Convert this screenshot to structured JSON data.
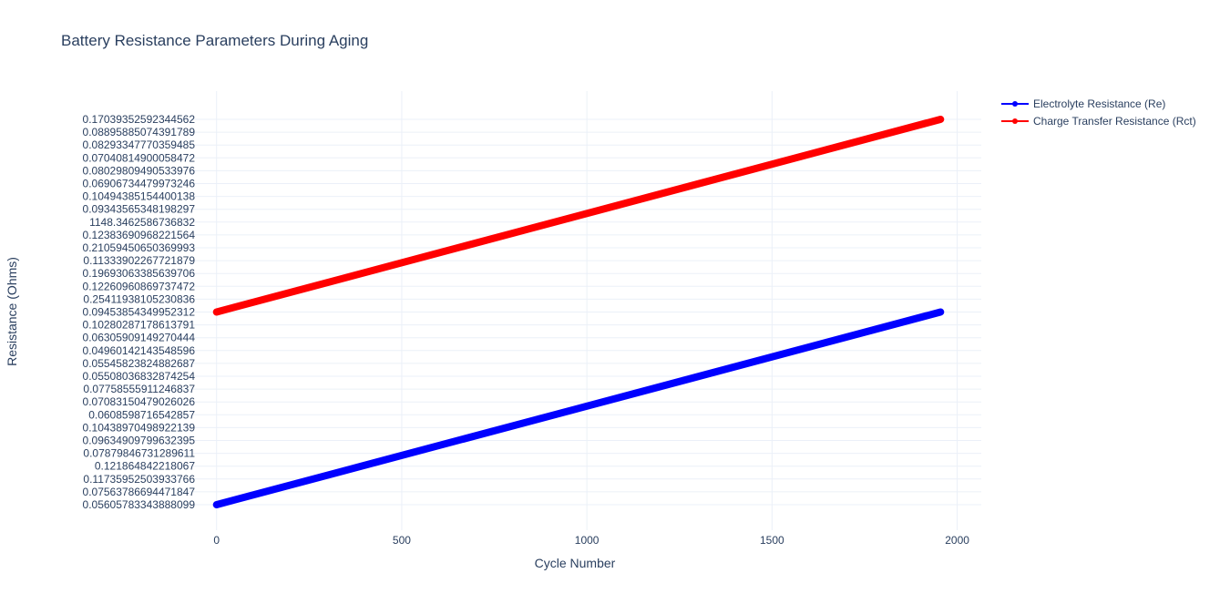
{
  "chart_data": {
    "type": "line",
    "title": "Battery Resistance Parameters During Aging",
    "xlabel": "Cycle Number",
    "ylabel": "Resistance (Ohms)",
    "xlim": [
      -110,
      2065
    ],
    "x_ticks": [
      0,
      500,
      1000,
      1500,
      2000
    ],
    "y_axis_type": "category",
    "y_categories": [
      "0.05605783343888099",
      "0.07563786694471847",
      "0.11735952503933766",
      "0.121864842218067",
      "0.07879846731289611",
      "0.09634909799632395",
      "0.10438970498922139",
      "0.0608598716542857",
      "0.07083150479026026",
      "0.07758555911246837",
      "0.05508036832874254",
      "0.05545823824882687",
      "0.04960142143548596",
      "0.06305909149270444",
      "0.10280287178613791",
      "0.09453854349952312",
      "0.25411938105230836",
      "0.12260960869737472",
      "0.19693063385639706",
      "0.11333902267721879",
      "0.21059450650369993",
      "0.12383690968221564",
      "1148.3462586736832",
      "0.09343565348198297",
      "0.10494385154400138",
      "0.06906734479973246",
      "0.08029809490533976",
      "0.07040814900058472",
      "0.08293347770359485",
      "0.08895885074391789",
      "0.17039352592344562"
    ],
    "legend_position": "top-right",
    "grid": true,
    "series": [
      {
        "name": "Electrolyte Resistance (Re)",
        "color": "#0000ff",
        "x_start": 0,
        "x_end": 1955,
        "y_start_category": "0.05605783343888099",
        "y_end_category": "0.09453854349952312"
      },
      {
        "name": "Charge Transfer Resistance (Rct)",
        "color": "#ff0000",
        "x_start": 0,
        "x_end": 1955,
        "y_start_category": "0.09453854349952312",
        "y_end_category": "0.17039352592344562"
      }
    ]
  }
}
